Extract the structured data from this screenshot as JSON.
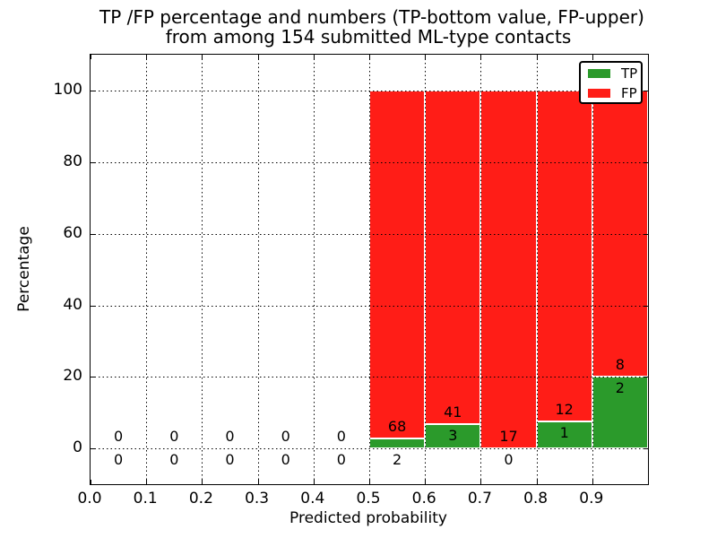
{
  "title": {
    "line1": "TP /FP percentage and numbers (TP-bottom value, FP-upper)",
    "line2": "from among 154 submitted ML-type contacts"
  },
  "x_axis": {
    "label": "Predicted probability",
    "ticks": [
      "0.0",
      "0.1",
      "0.2",
      "0.3",
      "0.4",
      "0.5",
      "0.6",
      "0.7",
      "0.8",
      "0.9"
    ]
  },
  "y_axis": {
    "label": "Percentage",
    "ticks": [
      "0",
      "20",
      "40",
      "60",
      "80",
      "100"
    ]
  },
  "legend": {
    "items": [
      {
        "label": "TP",
        "color": "#2b9a2b"
      },
      {
        "label": "FP",
        "color": "#ff1d17"
      }
    ]
  },
  "colors": {
    "tp": "#2b9a2b",
    "fp": "#ff1d17",
    "grid": "#000000",
    "background": "#ffffff"
  },
  "chart_data": {
    "type": "bar",
    "stacked": true,
    "title": "TP /FP percentage and numbers (TP-bottom value, FP-upper) from among 154 submitted ML-type contacts",
    "xlabel": "Predicted probability",
    "ylabel": "Percentage",
    "xlim": [
      0.0,
      1.0
    ],
    "ylim": [
      -10,
      110
    ],
    "y_tick_values": [
      0,
      20,
      40,
      60,
      80,
      100
    ],
    "x_tick_values": [
      0.0,
      0.1,
      0.2,
      0.3,
      0.4,
      0.5,
      0.6,
      0.7,
      0.8,
      0.9
    ],
    "grid": true,
    "grid_style": "dotted",
    "legend_position": "upper right",
    "total_contacts": 154,
    "bin_width": 0.1,
    "bins": [
      {
        "x_start": 0.0,
        "tp_count": 0,
        "fp_count": 0,
        "tp_pct": 0.0,
        "fp_pct": 0.0
      },
      {
        "x_start": 0.1,
        "tp_count": 0,
        "fp_count": 0,
        "tp_pct": 0.0,
        "fp_pct": 0.0
      },
      {
        "x_start": 0.2,
        "tp_count": 0,
        "fp_count": 0,
        "tp_pct": 0.0,
        "fp_pct": 0.0
      },
      {
        "x_start": 0.3,
        "tp_count": 0,
        "fp_count": 0,
        "tp_pct": 0.0,
        "fp_pct": 0.0
      },
      {
        "x_start": 0.4,
        "tp_count": 0,
        "fp_count": 0,
        "tp_pct": 0.0,
        "fp_pct": 0.0
      },
      {
        "x_start": 0.5,
        "tp_count": 2,
        "fp_count": 68,
        "tp_pct": 2.86,
        "fp_pct": 97.14
      },
      {
        "x_start": 0.6,
        "tp_count": 3,
        "fp_count": 41,
        "tp_pct": 6.82,
        "fp_pct": 93.18
      },
      {
        "x_start": 0.7,
        "tp_count": 0,
        "fp_count": 17,
        "tp_pct": 0.0,
        "fp_pct": 100.0
      },
      {
        "x_start": 0.8,
        "tp_count": 1,
        "fp_count": 12,
        "tp_pct": 7.69,
        "fp_pct": 92.31
      },
      {
        "x_start": 0.9,
        "tp_count": 2,
        "fp_count": 8,
        "tp_pct": 20.0,
        "fp_pct": 80.0
      }
    ],
    "series": [
      {
        "name": "TP",
        "color": "#2b9a2b",
        "values": [
          0,
          0,
          0,
          0,
          0,
          2,
          3,
          0,
          1,
          2
        ]
      },
      {
        "name": "FP",
        "color": "#ff1d17",
        "values": [
          0,
          0,
          0,
          0,
          0,
          68,
          41,
          17,
          12,
          8
        ]
      }
    ]
  }
}
